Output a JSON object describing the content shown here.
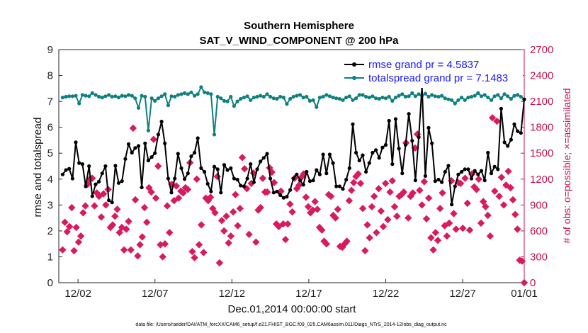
{
  "chart_data": {
    "type": "line",
    "title": "Southern Hemisphere",
    "subtitle": "SAT_V_WIND_COMPONENT @ 200 hPa",
    "xlabel": "Dec.01,2014 00:00:00 start",
    "ylabel": "rmse and totalspread",
    "ylabel_right": "# of obs: o=possible; ×=assimilated",
    "footnote": "data file: /Users/raeder/DAI/ATM_forcXX/CAM6_setup/f.e21.FHIST_BGC.f09_025.CAM6assim.011/Diags_NTrS_2014-12/obs_diag_output.nc",
    "xlim": [
      0.75,
      31.0
    ],
    "ylim": [
      0,
      9
    ],
    "ylim_right": [
      0,
      2700
    ],
    "x_ticks": [
      2,
      7,
      12,
      17,
      22,
      27,
      32
    ],
    "x_tick_labels": [
      "12/02",
      "12/07",
      "12/12",
      "12/17",
      "12/22",
      "12/27",
      "01/01"
    ],
    "y_ticks": [
      "0",
      "1",
      "2",
      "3",
      "4",
      "5",
      "6",
      "7",
      "8",
      "9"
    ],
    "y_ticks_right": [
      "0",
      "300",
      "600",
      "900",
      "1200",
      "1500",
      "1800",
      "2100",
      "2400",
      "2700"
    ],
    "legend_position": "top-right",
    "colors": {
      "rmse": "#000000",
      "spread": "#0e8080",
      "obs": "#d81b60",
      "right_axis": "#c0124f",
      "legend_text": "#1a1aff"
    },
    "series": [
      {
        "name": "rmse grand pr = 4.5837",
        "color": "#000000",
        "values": [
          4.18,
          4.35,
          4.4,
          4.02,
          5.42,
          4.62,
          4.58,
          3.72,
          4.5,
          3.34,
          3.8,
          3.9,
          4.22,
          4.5,
          3.18,
          3.1,
          4.52,
          3.85,
          3.92,
          4.78,
          5.35,
          5.02,
          5.2,
          5.28,
          3.68,
          5.38,
          4.72,
          4.85,
          5.0,
          5.72,
          6.22,
          5.38,
          4.02,
          3.48,
          4.02,
          4.98,
          4.42,
          4.0,
          4.22,
          4.88,
          5.02,
          5.58,
          4.42,
          4.28,
          3.82,
          3.52,
          4.48,
          4.38,
          3.48,
          4.55,
          4.35,
          4.42,
          4.02,
          3.98,
          3.75,
          3.72,
          4.02,
          4.58,
          3.88,
          4.38,
          4.68,
          4.82,
          4.98,
          4.02,
          3.48,
          3.52,
          3.38,
          3.28,
          3.32,
          3.58,
          4.02,
          4.18,
          3.95,
          3.78,
          4.28,
          3.92,
          3.95,
          4.35,
          4.18,
          4.95,
          4.22,
          4.95,
          4.62,
          3.72,
          3.72,
          3.62,
          3.98,
          4.42,
          6.12,
          5.02,
          4.72,
          4.92,
          4.28,
          4.62,
          5.02,
          5.12,
          4.82,
          5.22,
          5.32,
          6.25,
          4.58,
          6.32,
          5.18,
          4.22,
          5.32,
          6.52,
          5.48,
          3.95,
          5.62,
          7.58,
          4.12,
          5.98,
          5.38,
          3.92,
          3.98,
          3.88,
          4.28,
          4.52,
          3.02,
          3.72,
          4.18,
          4.28,
          4.38,
          4.38,
          4.02,
          4.32,
          4.18,
          4.32,
          3.95,
          5.02,
          4.22,
          4.48,
          4.38,
          6.72,
          5.42,
          5.28,
          5.52,
          6.12,
          5.85,
          5.78,
          7.08
        ]
      },
      {
        "name": "totalspread grand pr = 7.1483",
        "color": "#0e8080",
        "values": [
          7.15,
          7.18,
          7.2,
          7.2,
          7.22,
          6.92,
          7.25,
          7.22,
          7.2,
          7.32,
          7.25,
          7.18,
          7.15,
          7.2,
          7.25,
          7.18,
          7.2,
          7.15,
          7.22,
          7.2,
          7.25,
          7.22,
          7.12,
          6.75,
          7.22,
          7.18,
          5.88,
          7.12,
          7.02,
          7.12,
          7.2,
          7.28,
          6.85,
          7.2,
          7.18,
          7.25,
          7.28,
          7.32,
          7.28,
          7.35,
          7.22,
          7.28,
          7.55,
          7.35,
          7.32,
          7.28,
          5.72,
          7.18,
          7.12,
          7.02,
          7.0,
          7.18,
          6.82,
          7.0,
          7.1,
          7.15,
          7.2,
          7.05,
          7.15,
          7.18,
          7.22,
          7.18,
          7.28,
          7.18,
          7.12,
          7.1,
          7.18,
          7.15,
          6.9,
          7.1,
          7.18,
          7.22,
          7.25,
          7.15,
          7.18,
          7.02,
          7.05,
          6.78,
          7.15,
          7.18,
          7.25,
          7.2,
          7.15,
          7.12,
          7.1,
          7.05,
          7.15,
          7.2,
          7.05,
          7.12,
          7.25,
          7.25,
          7.18,
          7.15,
          7.2,
          7.12,
          7.1,
          7.15,
          7.12,
          7.18,
          7.02,
          7.15,
          7.22,
          7.28,
          7.18,
          7.2,
          7.32,
          7.2,
          7.28,
          7.22,
          7.3,
          7.18,
          7.25,
          7.2,
          7.18,
          7.22,
          7.12,
          7.08,
          7.05,
          6.92,
          7.05,
          7.15,
          7.05,
          7.15,
          7.18,
          7.22,
          7.32,
          7.2,
          7.25,
          7.15,
          7.05,
          7.2,
          7.25,
          7.12,
          7.28,
          7.2,
          7.1,
          7.22,
          7.25,
          7.18,
          7.08
        ]
      },
      {
        "name": "# of obs: o=possible; ×=assimilated",
        "axis": "right",
        "color": "#d81b60",
        "values": [
          380,
          700,
          590,
          650,
          870,
          370,
          640,
          470,
          540,
          810,
          890,
          1140,
          1200,
          1210,
          890,
          1040,
          1000,
          760,
          1030,
          900,
          1080,
          640,
          670,
          770,
          850,
          580,
          640,
          380,
          620,
          710,
          380,
          1790,
          960,
          310,
          440,
          530,
          870,
          700,
          1100,
          1050,
          1660,
          980,
          1350,
          440,
          300,
          450,
          890,
          580,
          1140,
          950,
          1120,
          980,
          1060,
          1040,
          1100,
          1080,
          1390,
          360,
          290,
          1200,
          440,
          670,
          350,
          980,
          950,
          990,
          860,
          810,
          1230,
          230,
          720,
          600,
          770,
          460,
          540,
          820,
          1020,
          660,
          860,
          1450,
          1320,
          1090,
          560,
          1150,
          1270,
          470,
          840,
          870,
          1210,
          1050,
          1050,
          1330,
          1280,
          1160,
          680,
          650,
          1060,
          680,
          500,
          680,
          910,
          820,
          1210,
          1090,
          1130,
          1220,
          1260,
          990,
          880,
          810,
          840,
          940,
          850,
          640,
          610,
          480,
          450,
          1020,
          1000,
          780,
          750,
          850,
          420,
          410,
          450,
          480,
          950,
          1070,
          1160,
          1230,
          1260,
          1150,
          860,
          370,
          670,
          520,
          880,
          1000,
          580,
          1090,
          830,
          650,
          1150,
          730,
          1050,
          1180,
          880,
          770,
          1000,
          1020,
          1050,
          1620,
          750,
          1000,
          1040,
          1560,
          1720,
          1070,
          900,
          1170,
          740,
          980,
          520,
          380,
          580,
          490,
          860,
          1040,
          660,
          540,
          690,
          1180,
          800,
          620,
          1160,
          1150,
          630,
          1210,
          920,
          610,
          1260,
          1110,
          1080,
          1200,
          690,
          940,
          880,
          780,
          540,
          1910,
          1060,
          1870,
          1000,
          1220,
          900,
          1130,
          1290,
          1100,
          960,
          790,
          620,
          260,
          250,
          0
        ]
      }
    ]
  }
}
